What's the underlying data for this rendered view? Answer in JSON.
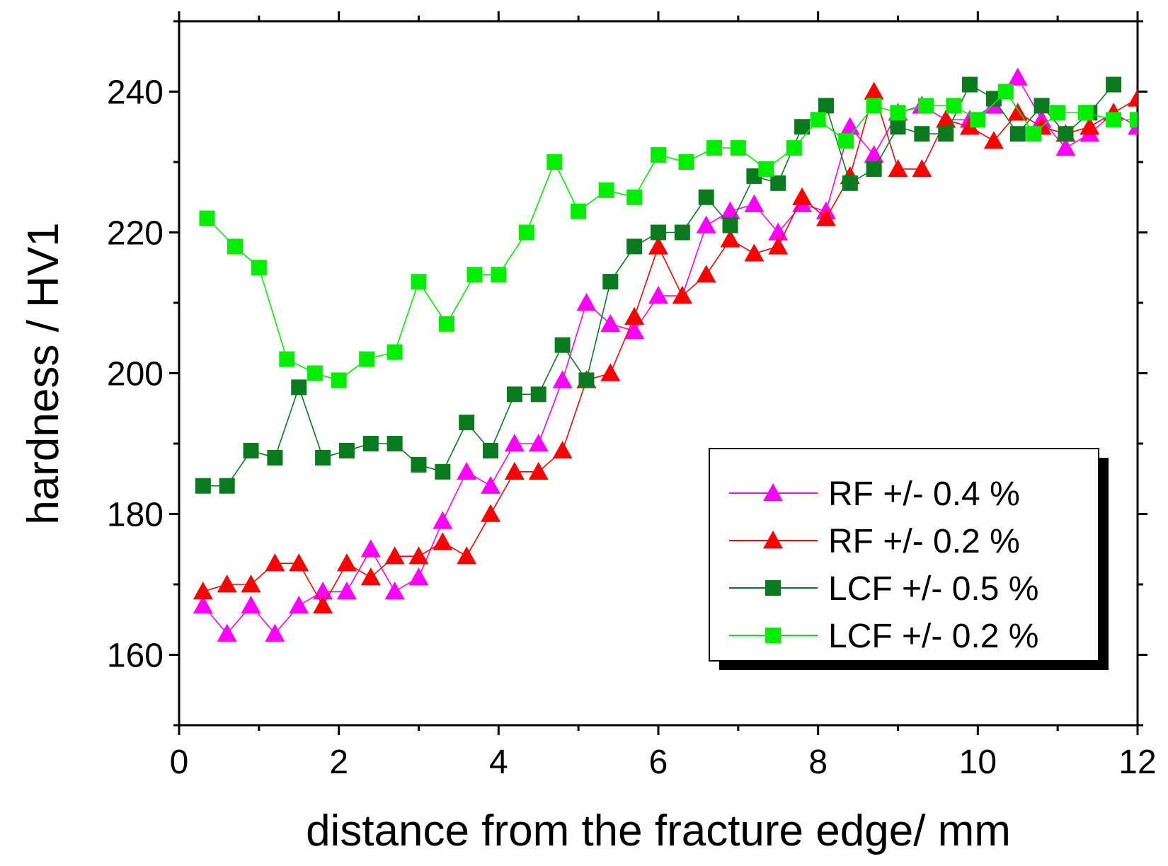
{
  "chart_data": {
    "type": "line",
    "title": "",
    "xlabel": "distance from the fracture edge/ mm",
    "ylabel": "hardness / HV1",
    "xlim": [
      0,
      12
    ],
    "ylim": [
      150,
      250
    ],
    "xticks": [
      0,
      2,
      4,
      6,
      8,
      10,
      12
    ],
    "yticks": [
      160,
      180,
      200,
      220,
      240
    ],
    "grid": false,
    "legend_position": "bottom-right",
    "series": [
      {
        "name": "RF +/- 0.4 %",
        "color": "#ff00ff",
        "marker": "triangle",
        "x": [
          0.3,
          0.6,
          0.9,
          1.2,
          1.5,
          1.8,
          2.1,
          2.4,
          2.7,
          3.0,
          3.3,
          3.6,
          3.9,
          4.2,
          4.5,
          4.8,
          5.1,
          5.4,
          5.7,
          6.0,
          6.3,
          6.6,
          6.9,
          7.2,
          7.5,
          7.8,
          8.1,
          8.4,
          8.7,
          9.0,
          9.3,
          9.6,
          9.9,
          10.2,
          10.5,
          10.8,
          11.1,
          11.4,
          11.7,
          12.0
        ],
        "y": [
          167,
          163,
          167,
          163,
          167,
          169,
          169,
          175,
          169,
          171,
          179,
          186,
          184,
          190,
          190,
          199,
          210,
          207,
          206,
          211,
          211,
          221,
          223,
          224,
          220,
          224,
          223,
          235,
          231,
          237,
          238,
          236,
          236,
          238,
          242,
          236,
          232,
          234,
          237,
          235
        ]
      },
      {
        "name": "RF +/- 0.2 %",
        "color": "#ff0000",
        "marker": "triangle",
        "x": [
          0.3,
          0.6,
          0.9,
          1.2,
          1.5,
          1.8,
          2.1,
          2.4,
          2.7,
          3.0,
          3.3,
          3.6,
          3.9,
          4.2,
          4.5,
          4.8,
          5.1,
          5.4,
          5.7,
          6.0,
          6.3,
          6.6,
          6.9,
          7.2,
          7.5,
          7.8,
          8.1,
          8.4,
          8.7,
          9.0,
          9.3,
          9.6,
          9.9,
          10.2,
          10.5,
          10.8,
          11.1,
          11.4,
          11.7,
          12.0
        ],
        "y": [
          169,
          170,
          170,
          173,
          173,
          167,
          173,
          171,
          174,
          174,
          176,
          174,
          180,
          186,
          186,
          189,
          199,
          200,
          208,
          218,
          211,
          214,
          219,
          217,
          218,
          225,
          222,
          228,
          240,
          229,
          229,
          236,
          235,
          233,
          237,
          235,
          234,
          235,
          237,
          239
        ]
      },
      {
        "name": "LCF +/- 0.5 %",
        "color": "#0a7a1e",
        "marker": "square",
        "x": [
          0.3,
          0.6,
          0.9,
          1.2,
          1.5,
          1.8,
          2.1,
          2.4,
          2.7,
          3.0,
          3.3,
          3.6,
          3.9,
          4.2,
          4.5,
          4.8,
          5.1,
          5.4,
          5.7,
          6.0,
          6.3,
          6.6,
          6.9,
          7.2,
          7.5,
          7.8,
          8.1,
          8.4,
          8.7,
          9.0,
          9.3,
          9.6,
          9.9,
          10.2,
          10.5,
          10.8,
          11.1,
          11.4,
          11.7
        ],
        "y": [
          184,
          184,
          189,
          188,
          198,
          188,
          189,
          190,
          190,
          187,
          186,
          193,
          189,
          197,
          197,
          204,
          199,
          213,
          218,
          220,
          220,
          225,
          221,
          228,
          227,
          235,
          238,
          227,
          229,
          235,
          234,
          234,
          241,
          239,
          234,
          238,
          234,
          237,
          241
        ]
      },
      {
        "name": "LCF +/- 0.2 %",
        "color": "#00ee00",
        "marker": "square",
        "x": [
          0.35,
          0.7,
          1.0,
          1.35,
          1.7,
          2.0,
          2.35,
          2.7,
          3.0,
          3.35,
          3.7,
          4.0,
          4.35,
          4.7,
          5.0,
          5.35,
          5.7,
          6.0,
          6.35,
          6.7,
          7.0,
          7.35,
          7.7,
          8.0,
          8.35,
          8.7,
          9.0,
          9.35,
          9.7,
          10.0,
          10.35,
          10.7,
          11.0,
          11.35,
          11.7,
          12.0
        ],
        "y": [
          222,
          218,
          215,
          202,
          200,
          199,
          202,
          203,
          213,
          207,
          214,
          214,
          220,
          230,
          223,
          226,
          225,
          231,
          230,
          232,
          232,
          229,
          232,
          236,
          233,
          238,
          237,
          238,
          238,
          236,
          240,
          234,
          237,
          237,
          236,
          236
        ]
      }
    ]
  }
}
